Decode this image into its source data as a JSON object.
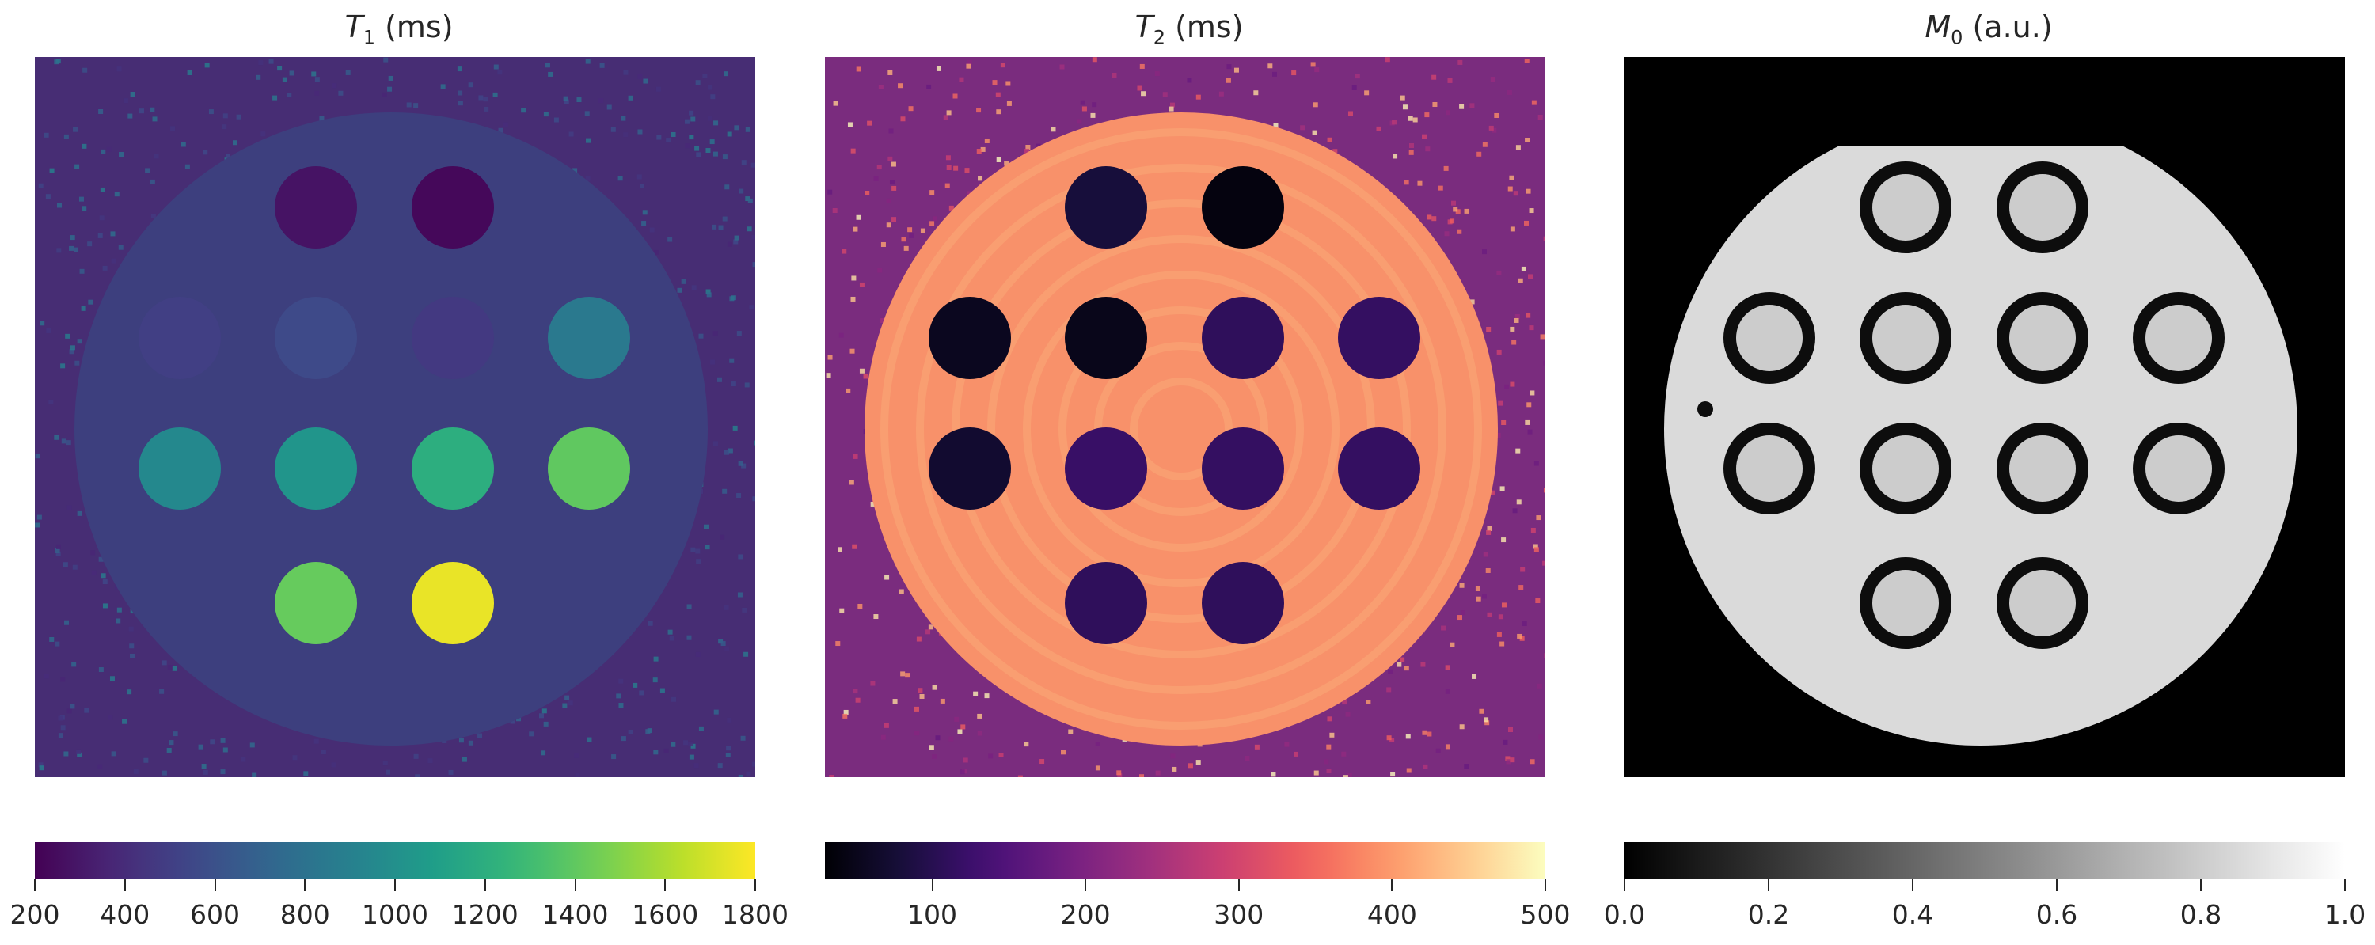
{
  "chart_data": [
    {
      "type": "heatmap",
      "title_symbol": "T",
      "title_subscript": "1",
      "title_unit": "(ms)",
      "colormap": "viridis",
      "colorbar": {
        "range": [
          200,
          1800
        ],
        "ticks": [
          "200",
          "400",
          "600",
          "800",
          "1000",
          "1200",
          "1400",
          "1600",
          "1800"
        ]
      },
      "colors": {
        "background": "#3d3f7e",
        "noise": "#472d74"
      },
      "vials": [
        {
          "row": 1,
          "col": 2,
          "value": 280
        },
        {
          "row": 1,
          "col": 3,
          "value": 230
        },
        {
          "row": 2,
          "col": 1,
          "value": 500
        },
        {
          "row": 2,
          "col": 2,
          "value": 560
        },
        {
          "row": 2,
          "col": 3,
          "value": 470
        },
        {
          "row": 2,
          "col": 4,
          "value": 850
        },
        {
          "row": 3,
          "col": 1,
          "value": 950
        },
        {
          "row": 3,
          "col": 2,
          "value": 1030
        },
        {
          "row": 3,
          "col": 3,
          "value": 1200
        },
        {
          "row": 3,
          "col": 4,
          "value": 1400
        },
        {
          "row": 4,
          "col": 2,
          "value": 1420
        },
        {
          "row": 4,
          "col": 3,
          "value": 1750
        }
      ]
    },
    {
      "type": "heatmap",
      "title_symbol": "T",
      "title_subscript": "2",
      "title_unit": "(ms)",
      "colormap": "magma",
      "colorbar": {
        "range": [
          30,
          500
        ],
        "ticks": [
          "100",
          "200",
          "300",
          "400",
          "500"
        ]
      },
      "colors": {
        "background": "#f8916a",
        "noise": "#7a2c7e"
      },
      "vials": [
        {
          "row": 1,
          "col": 2,
          "value": 80
        },
        {
          "row": 1,
          "col": 3,
          "value": 40
        },
        {
          "row": 2,
          "col": 1,
          "value": 55
        },
        {
          "row": 2,
          "col": 2,
          "value": 50
        },
        {
          "row": 2,
          "col": 3,
          "value": 110
        },
        {
          "row": 2,
          "col": 4,
          "value": 115
        },
        {
          "row": 3,
          "col": 1,
          "value": 70
        },
        {
          "row": 3,
          "col": 2,
          "value": 120
        },
        {
          "row": 3,
          "col": 3,
          "value": 115
        },
        {
          "row": 3,
          "col": 4,
          "value": 115
        },
        {
          "row": 4,
          "col": 2,
          "value": 110
        },
        {
          "row": 4,
          "col": 3,
          "value": 110
        }
      ]
    },
    {
      "type": "heatmap",
      "title_symbol": "M",
      "title_subscript": "0",
      "title_unit": "(a.u.)",
      "colormap": "gray",
      "colorbar": {
        "range": [
          0,
          1
        ],
        "ticks": [
          "0.0",
          "0.2",
          "0.4",
          "0.6",
          "0.8",
          "1.0"
        ]
      },
      "colors": {
        "background": "#000000",
        "phantom": "#dadada",
        "vial_inner": "#cccccc",
        "vial_ring": "#0d0d0d"
      }
    }
  ]
}
